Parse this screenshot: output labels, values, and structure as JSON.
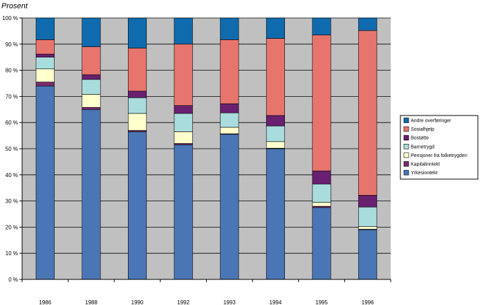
{
  "chart_data": {
    "type": "bar",
    "stacked": true,
    "percent": true,
    "title": "",
    "xlabel": "",
    "ylabel": "Prosent",
    "ylim": [
      0,
      100
    ],
    "yticks": [
      0,
      10,
      20,
      30,
      40,
      50,
      60,
      70,
      80,
      90,
      100
    ],
    "ytick_labels": [
      "0 %",
      "10 %",
      "20 %",
      "30 %",
      "40 %",
      "50 %",
      "60 %",
      "70 %",
      "80 %",
      "90 %",
      "100 %"
    ],
    "grid": true,
    "legend_position": "right",
    "categories": [
      "1986",
      "1988",
      "1990",
      "1992",
      "1993",
      "1994",
      "1995",
      "1996"
    ],
    "series": [
      {
        "name": "Yrkesinntekt",
        "color": "#4A76B5",
        "values": [
          74,
          65,
          56.5,
          51.5,
          55.5,
          50,
          27.5,
          19
        ]
      },
      {
        "name": "Kapitalinntekt",
        "color": "#7B2A6B",
        "values": [
          1.5,
          0.8,
          0.5,
          0.5,
          0.2,
          0.2,
          0.5,
          0.2
        ]
      },
      {
        "name": "Pensjoner fra folketrygden",
        "color": "#FFFFCC",
        "values": [
          5,
          5,
          6.5,
          4.5,
          2.5,
          2.5,
          1.5,
          1
        ]
      },
      {
        "name": "Barnetrygd",
        "color": "#A9DCDD",
        "values": [
          4.5,
          5.7,
          6,
          7,
          5.5,
          6,
          7,
          7.5
        ]
      },
      {
        "name": "Bostøtte",
        "color": "#6A2070",
        "values": [
          1.2,
          1.8,
          2.5,
          3,
          3.5,
          4,
          5,
          4.5
        ]
      },
      {
        "name": "Sosialhjelp",
        "color": "#E8756D",
        "values": [
          5.5,
          10.7,
          16.5,
          23.5,
          24.5,
          29.5,
          52,
          63
        ]
      },
      {
        "name": "Andre overføringer",
        "color": "#0F6BAE",
        "values": [
          8.3,
          11,
          11.5,
          10,
          8.3,
          7.8,
          6.5,
          4.8
        ]
      }
    ],
    "legend_order": [
      "Andre overføringer",
      "Sosialhjelp",
      "Bostøtte",
      "Barnetrygd",
      "Pensjoner fra folketrygden",
      "Kapitalinntekt",
      "Yrkesinntekt"
    ]
  }
}
